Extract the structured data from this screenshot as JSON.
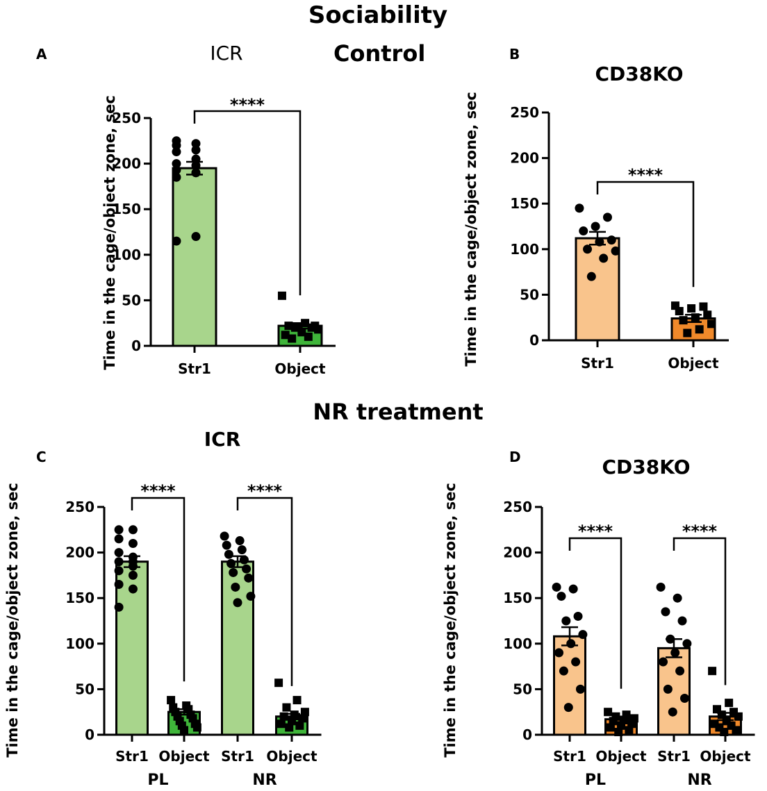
{
  "figure": {
    "title": "Sociability",
    "section_control": "Control",
    "section_treatment": "NR treatment"
  },
  "colors": {
    "green_light": "#a8d58c",
    "green_dark": "#3fb53a",
    "orange_light": "#f9c48c",
    "orange_dark": "#f0892a"
  },
  "chart_data": [
    {
      "id": "A",
      "panel_label": "A",
      "title": "ICR",
      "type": "bar",
      "ylabel": "Time in the cage/object zone, sec",
      "ylim": [
        0,
        250
      ],
      "yticks": [
        0,
        50,
        100,
        150,
        200,
        250
      ],
      "categories": [
        "Str1",
        "Object"
      ],
      "groups": [],
      "values": [
        195,
        22
      ],
      "errors": [
        7,
        3
      ],
      "bar_colors": [
        "green_light",
        "green_dark"
      ],
      "markers": [
        "circle",
        "square"
      ],
      "points": [
        [
          225,
          222,
          220,
          215,
          213,
          205,
          200,
          198,
          193,
          190,
          185,
          120,
          115,
          190
        ],
        [
          55,
          25,
          22,
          20,
          20,
          18,
          15,
          12,
          10,
          8,
          22,
          21
        ]
      ],
      "significance": [
        {
          "from": 0,
          "to": 1,
          "label": "****"
        }
      ]
    },
    {
      "id": "B",
      "panel_label": "B",
      "title": "CD38KO",
      "type": "bar",
      "ylabel": "Time in the cage/object zone, sec",
      "ylim": [
        0,
        250
      ],
      "yticks": [
        0,
        50,
        100,
        150,
        200,
        250
      ],
      "categories": [
        "Str1",
        "Object"
      ],
      "groups": [],
      "values": [
        112,
        24
      ],
      "errors": [
        7,
        4
      ],
      "bar_colors": [
        "orange_light",
        "orange_dark"
      ],
      "markers": [
        "circle",
        "square"
      ],
      "points": [
        [
          145,
          135,
          125,
          120,
          110,
          108,
          100,
          98,
          90,
          70
        ],
        [
          38,
          37,
          35,
          32,
          28,
          25,
          22,
          18,
          12,
          8
        ]
      ],
      "significance": [
        {
          "from": 0,
          "to": 1,
          "label": "****"
        }
      ]
    },
    {
      "id": "C",
      "panel_label": "C",
      "title": "ICR",
      "type": "bar",
      "ylabel": "Time in the cage/object zone, sec",
      "ylim": [
        0,
        250
      ],
      "yticks": [
        0,
        50,
        100,
        150,
        200,
        250
      ],
      "categories": [
        "Str1",
        "Object",
        "Str1",
        "Object"
      ],
      "groups": [
        "PL",
        "NR"
      ],
      "values": [
        190,
        25,
        190,
        20
      ],
      "errors": [
        6,
        3,
        6,
        3
      ],
      "bar_colors": [
        "green_light",
        "green_dark",
        "green_light",
        "green_dark"
      ],
      "markers": [
        "circle",
        "square",
        "circle",
        "square"
      ],
      "points": [
        [
          225,
          225,
          215,
          210,
          200,
          195,
          190,
          185,
          180,
          175,
          165,
          160,
          140,
          190
        ],
        [
          38,
          32,
          30,
          28,
          25,
          22,
          20,
          18,
          15,
          12,
          10,
          8,
          5
        ],
        [
          218,
          213,
          208,
          203,
          198,
          192,
          188,
          182,
          178,
          172,
          162,
          152,
          145
        ],
        [
          57,
          38,
          30,
          25,
          22,
          20,
          18,
          15,
          12,
          10,
          8
        ]
      ],
      "significance": [
        {
          "from": 0,
          "to": 1,
          "label": "****"
        },
        {
          "from": 2,
          "to": 3,
          "label": "****"
        }
      ]
    },
    {
      "id": "D",
      "panel_label": "D",
      "title": "CD38KO",
      "type": "bar",
      "ylabel": "Time in the cage/object zone, sec",
      "ylim": [
        0,
        250
      ],
      "yticks": [
        0,
        50,
        100,
        150,
        200,
        250
      ],
      "categories": [
        "Str1",
        "Object",
        "Str1",
        "Object"
      ],
      "groups": [
        "PL",
        "NR"
      ],
      "values": [
        108,
        17,
        95,
        20
      ],
      "errors": [
        10,
        3,
        10,
        4
      ],
      "bar_colors": [
        "orange_light",
        "orange_dark",
        "orange_light",
        "orange_dark"
      ],
      "markers": [
        "circle",
        "square",
        "circle",
        "square"
      ],
      "points": [
        [
          162,
          160,
          152,
          130,
          125,
          110,
          100,
          90,
          80,
          70,
          50,
          30
        ],
        [
          25,
          22,
          20,
          18,
          16,
          15,
          12,
          10,
          8,
          5,
          3
        ],
        [
          162,
          150,
          135,
          125,
          105,
          100,
          90,
          80,
          70,
          50,
          40,
          25
        ],
        [
          70,
          35,
          28,
          25,
          22,
          20,
          15,
          12,
          10,
          8,
          5,
          3
        ]
      ],
      "significance": [
        {
          "from": 0,
          "to": 1,
          "label": "****"
        },
        {
          "from": 2,
          "to": 3,
          "label": "****"
        }
      ]
    }
  ]
}
